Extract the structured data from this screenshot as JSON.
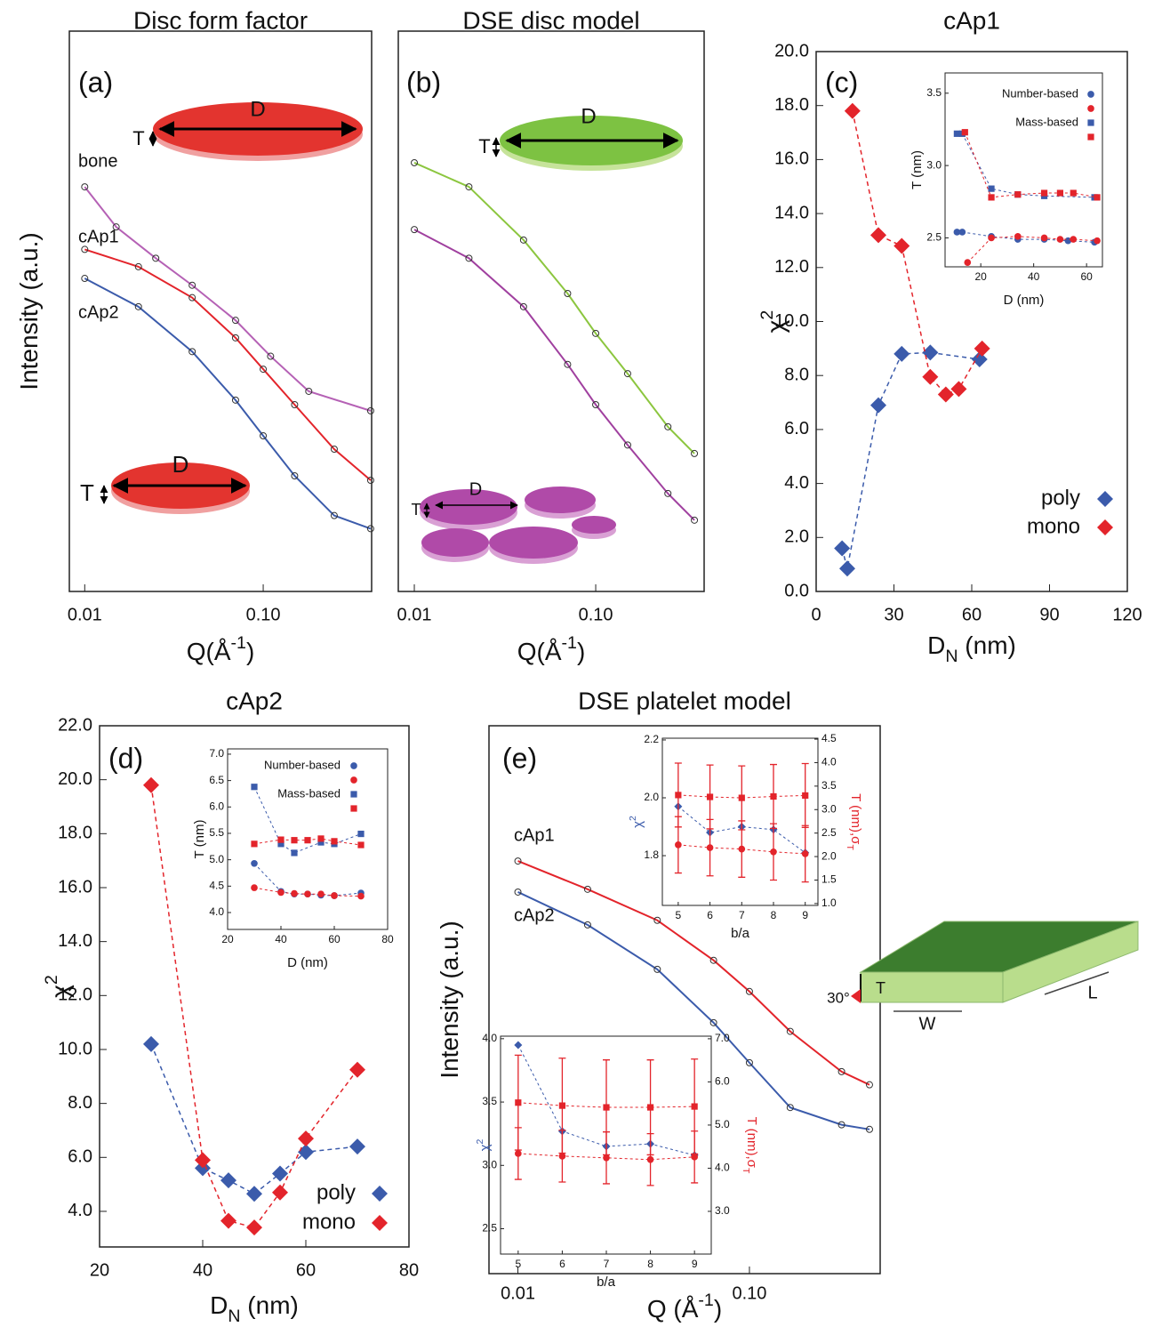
{
  "chart_data": [
    {
      "type": "line",
      "title": "Disc form factor",
      "panel_label": "(a)",
      "x_label": [
        "Q(Å",
        "-1",
        ")"
      ],
      "y_label": [
        "Intensity (a.u.)"
      ],
      "log_x": true,
      "log_y": true,
      "xlim": [
        0.0082,
        0.405
      ],
      "ylim": [
        1e-06,
        1
      ],
      "xticks": [
        0.01,
        {
          "value": 0.1,
          "label": "0.10"
        }
      ],
      "shape_labels": [
        "T",
        "D",
        "T",
        "D"
      ],
      "series": [
        {
          "name": "bone",
          "color": "#b561b5",
          "x": [
            0.01,
            0.015,
            0.025,
            0.04,
            0.07,
            0.11,
            0.18,
            0.4
          ],
          "values": [
            0.0215,
            0.008,
            0.0037,
            0.0019,
            0.0008,
            0.00033,
            0.000139,
            8.6e-05
          ]
        },
        {
          "name": "cAp1",
          "color": "#e3242b",
          "x": [
            0.01,
            0.02,
            0.04,
            0.07,
            0.1,
            0.15,
            0.25,
            0.4
          ],
          "values": [
            0.0046,
            0.003,
            0.0014,
            0.00052,
            0.00024,
            0.0001,
            3.34e-05,
            1.55e-05
          ]
        },
        {
          "name": "cAp2",
          "color": "#3b5bab",
          "x": [
            0.01,
            0.02,
            0.04,
            0.07,
            0.1,
            0.15,
            0.25,
            0.4
          ],
          "values": [
            0.00225,
            0.00112,
            0.00037,
            0.000112,
            4.64e-05,
            1.73e-05,
            6.5e-06,
            4.7e-06
          ]
        }
      ]
    },
    {
      "type": "line",
      "title": "DSE disc model",
      "panel_label": "(b)",
      "x_label": [
        "Q(Å",
        "-1",
        ")"
      ],
      "log_x": true,
      "log_y": true,
      "xlim": [
        0.00816,
        0.396
      ],
      "ylim": [
        1e-06,
        1
      ],
      "xticks": [
        0.01,
        {
          "value": 0.1,
          "label": "0.10"
        }
      ],
      "shape_labels": [
        "T",
        "D",
        "T",
        "D"
      ],
      "series": [
        {
          "color": "#8cc63f",
          "x": [
            0.01,
            0.02,
            0.04,
            0.07,
            0.1,
            0.15,
            0.25,
            0.35
          ],
          "values": [
            0.039,
            0.0215,
            0.0058,
            0.00155,
            0.00058,
            0.000215,
            5.8e-05,
            3e-05
          ]
        },
        {
          "color": "#a0409f",
          "x": [
            0.01,
            0.02,
            0.04,
            0.07,
            0.1,
            0.15,
            0.25,
            0.35
          ],
          "values": [
            0.0075,
            0.0037,
            0.00112,
            0.00027,
            0.0001,
            3.7e-05,
            1.12e-05,
            5.8e-06
          ]
        }
      ]
    },
    {
      "type": "scatter",
      "title": "cAp1",
      "panel_label": "(c)",
      "x_label": [
        "D",
        "N",
        " (nm)"
      ],
      "y_label": [
        "χ",
        "2"
      ],
      "xlim": [
        0,
        120
      ],
      "ylim": [
        0,
        20
      ],
      "xticks": [
        0,
        30,
        60,
        90,
        120
      ],
      "yticks": [
        {
          "value": 0,
          "label": "0.0"
        },
        {
          "value": 2,
          "label": "2.0"
        },
        {
          "value": 4,
          "label": "4.0"
        },
        {
          "value": 6,
          "label": "6.0"
        },
        {
          "value": 8,
          "label": "8.0"
        },
        {
          "value": 10,
          "label": "10.0"
        },
        {
          "value": 12,
          "label": "12.0"
        },
        {
          "value": 14,
          "label": "14.0"
        },
        {
          "value": 16,
          "label": "16.0"
        },
        {
          "value": 18,
          "label": "18.0"
        },
        {
          "value": 20,
          "label": "20.0"
        }
      ],
      "legend": "lower right",
      "series": [
        {
          "name": "poly",
          "color": "#3b5bab",
          "marker": "diamond",
          "dashed": true,
          "x": [
            10,
            12,
            24,
            33,
            44,
            63
          ],
          "values": [
            1.6,
            0.85,
            6.9,
            8.8,
            8.85,
            8.6
          ]
        },
        {
          "name": "mono",
          "color": "#e3242b",
          "marker": "diamond",
          "dashed": true,
          "x": [
            14,
            24,
            33,
            44,
            50,
            55,
            64
          ],
          "values": [
            17.8,
            13.2,
            12.8,
            7.95,
            7.3,
            7.5,
            9.0
          ]
        }
      ]
    },
    {
      "type": "scatter",
      "x_label": [
        "D (nm)"
      ],
      "y_label": [
        "T (nm)"
      ],
      "xlim": [
        6.5,
        66
      ],
      "ylim": [
        2.3,
        3.64
      ],
      "xticks": [
        20,
        40,
        60
      ],
      "yticks": [
        2.5,
        {
          "value": 3,
          "label": "3.0"
        },
        3.5
      ],
      "legend": "upper right",
      "series": [
        {
          "name": "Number-based",
          "color": "#3b5bab",
          "marker": "circle",
          "dashed": true,
          "x": [
            11,
            13,
            24,
            34,
            44,
            53,
            63
          ],
          "values": [
            2.54,
            2.54,
            2.51,
            2.49,
            2.49,
            2.48,
            2.47
          ]
        },
        {
          "color": "#e3242b",
          "marker": "circle",
          "dashed": true,
          "x": [
            15,
            24,
            34,
            44,
            50,
            55,
            64
          ],
          "values": [
            2.33,
            2.5,
            2.51,
            2.5,
            2.49,
            2.49,
            2.48
          ]
        },
        {
          "name": "Mass-based",
          "color": "#3b5bab",
          "marker": "square",
          "dashed": true,
          "x": [
            11,
            13,
            24,
            34,
            44,
            63
          ],
          "values": [
            3.22,
            3.22,
            2.84,
            2.8,
            2.79,
            2.78
          ]
        },
        {
          "color": "#e3242b",
          "marker": "square",
          "dashed": true,
          "x": [
            14,
            24,
            34,
            44,
            50,
            55,
            64
          ],
          "values": [
            3.23,
            2.78,
            2.8,
            2.81,
            2.81,
            2.81,
            2.78
          ]
        }
      ]
    },
    {
      "type": "scatter",
      "title": "cAp2",
      "panel_label": "(d)",
      "x_label": [
        "D",
        "N",
        " (nm)"
      ],
      "y_label": [
        "χ",
        "2"
      ],
      "xlim": [
        20,
        80
      ],
      "ylim": [
        2.68,
        22
      ],
      "xticks": [
        20,
        40,
        60,
        80
      ],
      "yticks": [
        {
          "value": 4,
          "label": "4.0"
        },
        {
          "value": 6,
          "label": "6.0"
        },
        {
          "value": 8,
          "label": "8.0"
        },
        {
          "value": 10,
          "label": "10.0"
        },
        {
          "value": 12,
          "label": "12.0"
        },
        {
          "value": 14,
          "label": "14.0"
        },
        {
          "value": 16,
          "label": "16.0"
        },
        {
          "value": 18,
          "label": "18.0"
        },
        {
          "value": 20,
          "label": "20.0"
        },
        {
          "value": 22,
          "label": "22.0"
        }
      ],
      "legend": "lower right",
      "series": [
        {
          "name": "poly",
          "color": "#3b5bab",
          "marker": "diamond",
          "dashed": true,
          "x": [
            30,
            40,
            45,
            50,
            55,
            60,
            70
          ],
          "values": [
            10.2,
            5.6,
            5.15,
            4.65,
            5.4,
            6.2,
            6.4
          ]
        },
        {
          "name": "mono",
          "color": "#e3242b",
          "marker": "diamond",
          "dashed": true,
          "x": [
            30,
            40,
            45,
            50,
            55,
            60,
            70
          ],
          "values": [
            19.8,
            5.9,
            3.65,
            3.4,
            4.7,
            6.7,
            9.25
          ]
        }
      ]
    },
    {
      "type": "scatter",
      "x_label": [
        "D (nm)"
      ],
      "y_label": [
        "T (nm)"
      ],
      "xlim": [
        20,
        80
      ],
      "ylim": [
        3.68,
        7.1
      ],
      "xticks": [
        20,
        40,
        60,
        80
      ],
      "yticks": [
        {
          "value": 4,
          "label": "4.0"
        },
        4.5,
        {
          "value": 5,
          "label": "5.0"
        },
        5.5,
        {
          "value": 6,
          "label": "6.0"
        },
        6.5,
        {
          "value": 7,
          "label": "7.0"
        }
      ],
      "legend": "upper right",
      "series": [
        {
          "name": "Number-based",
          "color": "#3b5bab",
          "marker": "circle",
          "dashed": true,
          "x": [
            30,
            40,
            45,
            50,
            55,
            60,
            70
          ],
          "values": [
            4.93,
            4.4,
            4.35,
            4.35,
            4.33,
            4.32,
            4.37
          ]
        },
        {
          "color": "#e3242b",
          "marker": "circle",
          "dashed": true,
          "x": [
            30,
            40,
            45,
            50,
            55,
            60,
            70
          ],
          "values": [
            4.47,
            4.38,
            4.36,
            4.35,
            4.35,
            4.32,
            4.31
          ]
        },
        {
          "name": "Mass-based",
          "color": "#3b5bab",
          "marker": "square",
          "dashed": true,
          "x": [
            30,
            40,
            45,
            55,
            60,
            70
          ],
          "values": [
            6.38,
            5.3,
            5.13,
            5.33,
            5.3,
            5.49
          ]
        },
        {
          "color": "#e3242b",
          "marker": "square",
          "dashed": true,
          "x": [
            30,
            40,
            45,
            50,
            55,
            60,
            70
          ],
          "values": [
            5.3,
            5.38,
            5.37,
            5.37,
            5.4,
            5.35,
            5.28
          ]
        }
      ]
    },
    {
      "type": "line",
      "title": "DSE platelet model",
      "panel_label": "(e)",
      "x_label": [
        "Q (Å",
        "-1",
        ")"
      ],
      "y_label": [
        "Intensity (a.u.)"
      ],
      "log_x": true,
      "log_y": true,
      "xlim": [
        0.0075,
        0.367
      ],
      "ylim": [
        1e-06,
        1
      ],
      "xticks": [
        0.01,
        {
          "value": 0.1,
          "label": "0.10"
        }
      ],
      "shape_labels": [
        "30°",
        "T",
        "W",
        "L"
      ],
      "series": [
        {
          "name": "cAp1",
          "color": "#e3242b",
          "x": [
            0.01,
            0.02,
            0.04,
            0.07,
            0.1,
            0.15,
            0.25,
            0.33
          ],
          "values": [
            0.033,
            0.0162,
            0.0074,
            0.0027,
            0.00123,
            0.00045,
            0.000163,
            0.000117
          ]
        },
        {
          "name": "cAp2",
          "color": "#3b5bab",
          "x": [
            0.01,
            0.02,
            0.04,
            0.07,
            0.1,
            0.15,
            0.25,
            0.33
          ],
          "values": [
            0.0151,
            0.0066,
            0.00215,
            0.00056,
            0.000204,
            6.6e-05,
            4.27e-05,
            3.8e-05
          ]
        }
      ]
    },
    {
      "type": "scatter",
      "x_label": [
        "b/a"
      ],
      "y_label": [
        "χ",
        "2"
      ],
      "y2_label": [
        "T (nm),σ",
        "T"
      ],
      "y_label_color": "#3b5bab",
      "y2_label_color": "#e3242b",
      "xlim": [
        4.5,
        9.4
      ],
      "ylim": [
        1.628,
        2.206
      ],
      "y2lim": [
        0.96,
        4.52
      ],
      "xticks": [
        5,
        6,
        7,
        8,
        9
      ],
      "yticks": [
        1.8,
        {
          "value": 2,
          "label": "2.0"
        },
        2.2
      ],
      "y2ticks": [
        {
          "value": 1,
          "label": "1.0"
        },
        1.5,
        {
          "value": 2,
          "label": "2.0"
        },
        2.5,
        {
          "value": 3,
          "label": "3.0"
        },
        3.5,
        {
          "value": 4,
          "label": "4.0"
        },
        4.5
      ],
      "series": [
        {
          "color": "#3b5bab",
          "marker": "diamond",
          "dashed": true,
          "x": [
            5,
            6,
            7,
            8,
            9
          ],
          "values": [
            1.97,
            1.88,
            1.9,
            1.89,
            1.81
          ]
        },
        {
          "color": "#e3242b",
          "marker": "square",
          "dashed": true,
          "axis": "y2",
          "x": [
            5,
            6,
            7,
            8,
            9
          ],
          "values": [
            3.31,
            3.27,
            3.25,
            3.28,
            3.3
          ],
          "errors": [
            0.68,
            0.68,
            0.68,
            0.68,
            0.68
          ]
        },
        {
          "color": "#e3242b",
          "marker": "circle",
          "dashed": true,
          "axis": "y2",
          "x": [
            5,
            6,
            7,
            8,
            9
          ],
          "values": [
            2.25,
            2.19,
            2.16,
            2.1,
            2.06
          ],
          "errors": [
            0.6,
            0.6,
            0.6,
            0.6,
            0.6
          ]
        }
      ]
    },
    {
      "type": "scatter",
      "x_label": [
        "b/a"
      ],
      "y_label": [
        "χ",
        "2"
      ],
      "y2_label": [
        "T (nm),σ",
        "T"
      ],
      "y_label_color": "#3b5bab",
      "y2_label_color": "#e3242b",
      "xlim": [
        4.6,
        9.38
      ],
      "ylim": [
        2.3,
        4.02
      ],
      "y2lim": [
        2.01,
        7.06
      ],
      "xticks": [
        5,
        6,
        7,
        8,
        9
      ],
      "yticks": [
        2.5,
        {
          "value": 3,
          "label": "3.0"
        },
        3.5,
        {
          "value": 4,
          "label": "4.0"
        }
      ],
      "y2ticks": [
        {
          "value": 3,
          "label": "3.0"
        },
        {
          "value": 4,
          "label": "4.0"
        },
        {
          "value": 5,
          "label": "5.0"
        },
        {
          "value": 6,
          "label": "6.0"
        },
        {
          "value": 7,
          "label": "7.0"
        }
      ],
      "series": [
        {
          "color": "#3b5bab",
          "marker": "diamond",
          "dashed": true,
          "x": [
            5,
            6,
            7,
            8,
            9
          ],
          "values": [
            3.95,
            3.27,
            3.15,
            3.17,
            3.08
          ]
        },
        {
          "color": "#e3242b",
          "marker": "square",
          "dashed": true,
          "axis": "y2",
          "x": [
            5,
            6,
            7,
            8,
            9
          ],
          "values": [
            5.52,
            5.45,
            5.41,
            5.41,
            5.43
          ],
          "errors": [
            1.1,
            1.1,
            1.1,
            1.1,
            1.1
          ]
        },
        {
          "color": "#e3242b",
          "marker": "circle",
          "dashed": true,
          "axis": "y2",
          "x": [
            5,
            6,
            7,
            8,
            9
          ],
          "values": [
            4.34,
            4.28,
            4.24,
            4.2,
            4.26
          ],
          "errors": [
            0.6,
            0.6,
            0.6,
            0.6,
            0.6
          ]
        }
      ]
    }
  ]
}
